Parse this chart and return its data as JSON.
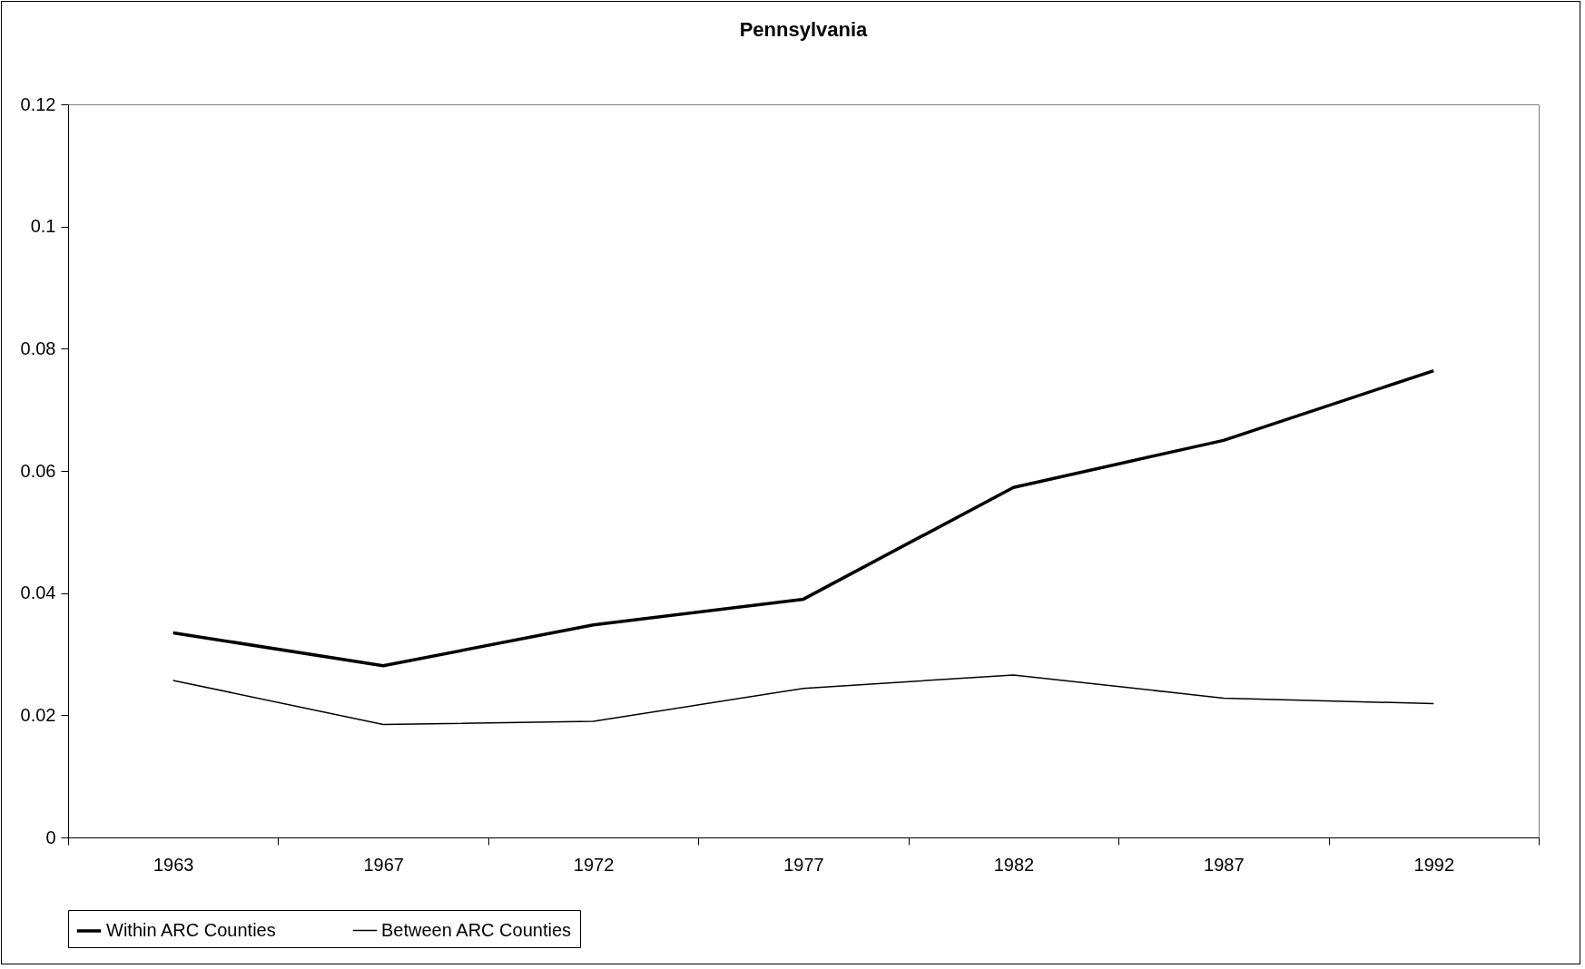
{
  "chart_data": {
    "type": "line",
    "title": "Pennsylvania",
    "categories": [
      "1963",
      "1967",
      "1972",
      "1977",
      "1982",
      "1987",
      "1992"
    ],
    "series": [
      {
        "name": "Within ARC Counties",
        "color": "#000000",
        "values": [
          0.0335,
          0.0281,
          0.0348,
          0.039,
          0.0573,
          0.065,
          0.0764
        ]
      },
      {
        "name": "Between ARC Counties",
        "color": "#000000",
        "values": [
          0.0257,
          0.0185,
          0.019,
          0.0244,
          0.0266,
          0.0228,
          0.0219
        ]
      }
    ],
    "ylim": [
      0,
      0.12
    ],
    "yticks": [
      0,
      0.02,
      0.04,
      0.06,
      0.08,
      0.1,
      0.12
    ],
    "grid": false,
    "legend": "bottom",
    "marker": "none",
    "line_style": "solid"
  }
}
